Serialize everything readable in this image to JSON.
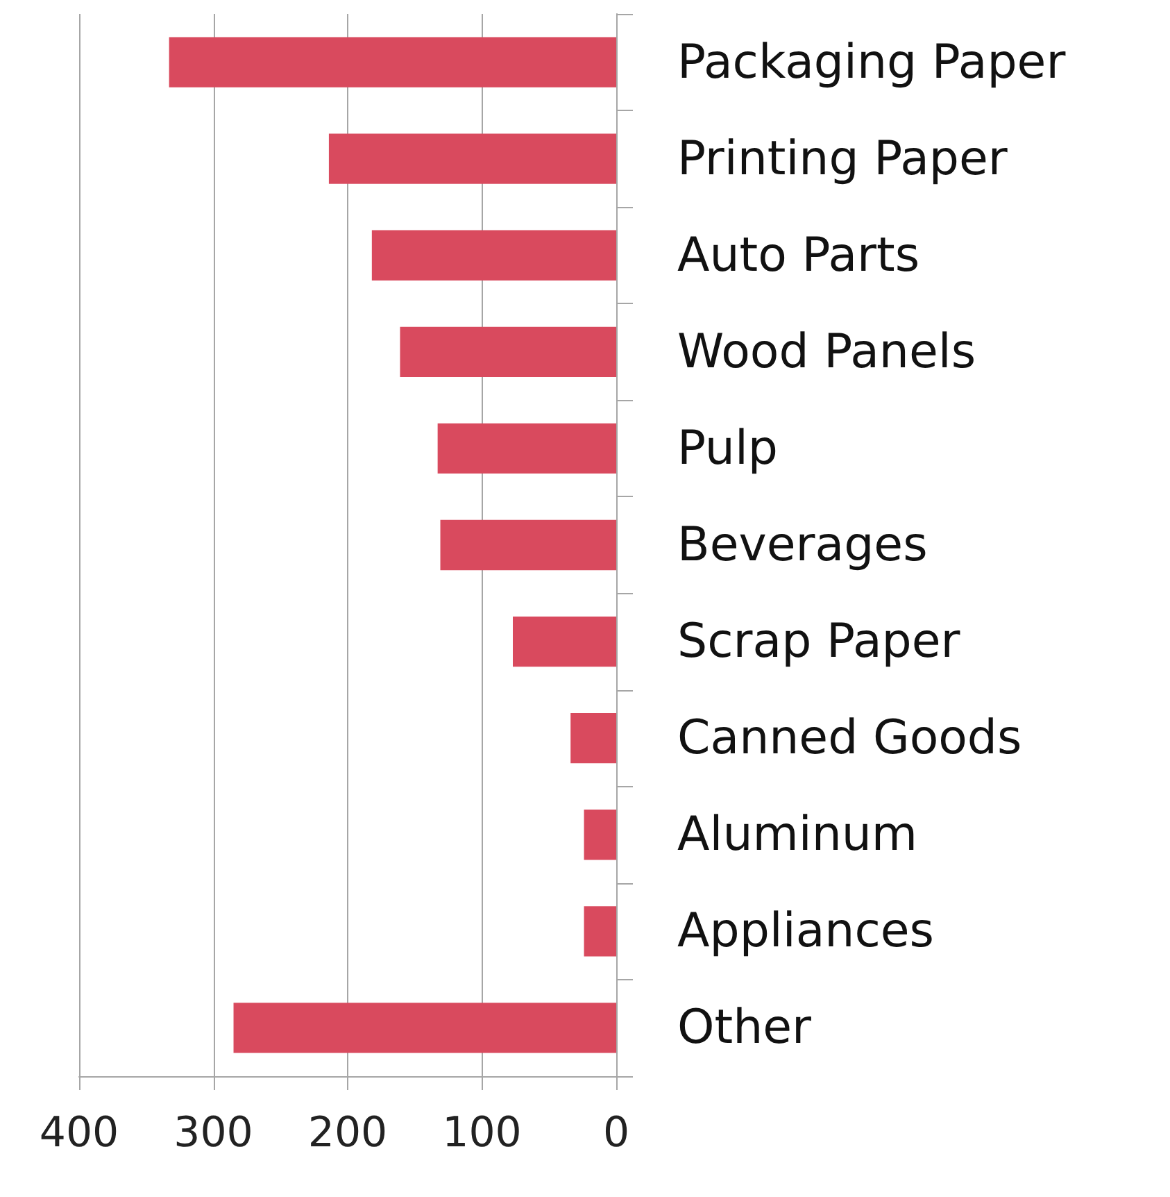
{
  "chart_data": {
    "type": "bar",
    "orientation": "horizontal",
    "categories": [
      "Packaging Paper",
      "Printing Paper",
      "Auto Parts",
      "Wood Panels",
      "Pulp",
      "Beverages",
      "Scrap Paper",
      "Canned Goods",
      "Aluminum",
      "Appliances",
      "Other"
    ],
    "values": [
      333,
      214,
      182,
      161,
      133,
      131,
      77,
      34,
      24,
      24,
      285
    ],
    "color": "#d94a5e",
    "xlim": [
      400,
      0
    ],
    "xticks": [
      400,
      300,
      200,
      100,
      0
    ],
    "grid": "x"
  }
}
